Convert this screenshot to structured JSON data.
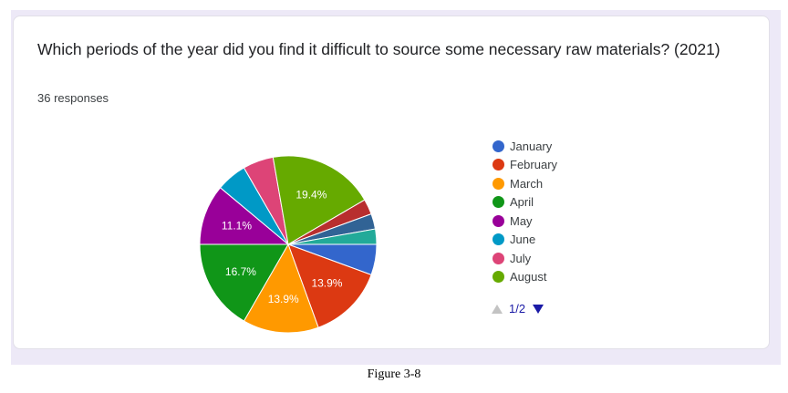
{
  "question": {
    "title": "Which periods of the year did you find it difficult to source some necessary raw materials? (2021)",
    "responses": "36 responses"
  },
  "chart_data": {
    "type": "pie",
    "title": "Which periods of the year did you find it difficult to source some necessary raw materials? (2021)",
    "total_responses": 36,
    "slices": [
      {
        "name": "January",
        "value": 5.6,
        "color": "#3366cc",
        "label": ""
      },
      {
        "name": "February",
        "value": 13.9,
        "color": "#dc3912",
        "label": "13.9%"
      },
      {
        "name": "March",
        "value": 13.9,
        "color": "#ff9900",
        "label": "13.9%"
      },
      {
        "name": "April",
        "value": 16.7,
        "color": "#109618",
        "label": "16.7%"
      },
      {
        "name": "May",
        "value": 11.1,
        "color": "#990099",
        "label": "11.1%"
      },
      {
        "name": "June",
        "value": 5.6,
        "color": "#0099c6",
        "label": ""
      },
      {
        "name": "July",
        "value": 5.6,
        "color": "#dd4477",
        "label": ""
      },
      {
        "name": "August",
        "value": 19.4,
        "color": "#66aa00",
        "label": "19.4%"
      },
      {
        "name": "",
        "value": 2.8,
        "color": "#b82e2e",
        "label": ""
      },
      {
        "name": "",
        "value": 2.8,
        "color": "#316395",
        "label": ""
      },
      {
        "name": "",
        "value": 2.8,
        "color": "#22aa99",
        "label": ""
      }
    ],
    "legend_position": "right",
    "legend_page": "1/2"
  },
  "caption": "Figure 3-8"
}
